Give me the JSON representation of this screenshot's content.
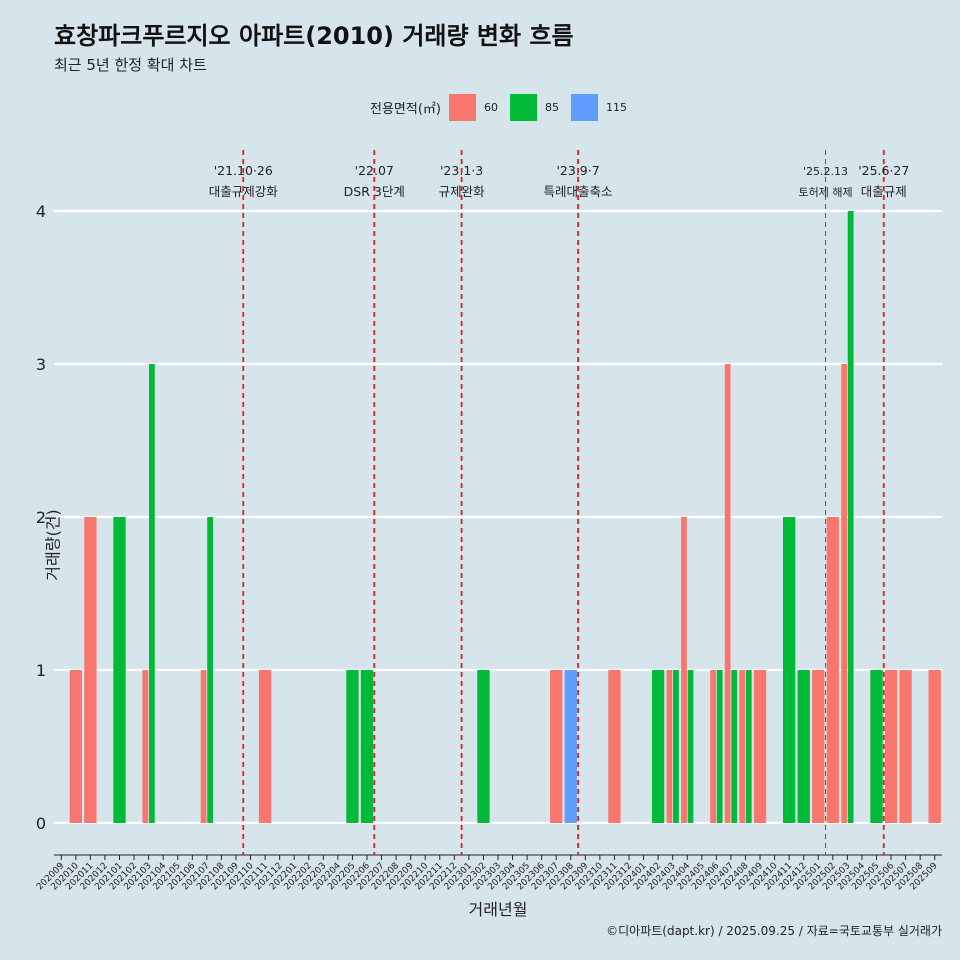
{
  "title": "효창파크푸르지오 아파트(2010) 거래량 변화 흐름",
  "subtitle": "최근 5년 한정 확대 차트",
  "footer": "©디아파트(dapt.kr) / 2025.09.25 / 자료=국토교통부 실거래가",
  "legend": {
    "title": "전용면적(㎡)",
    "items": [
      {
        "label": "60",
        "color": "#f8766d"
      },
      {
        "label": "85",
        "color": "#00ba38"
      },
      {
        "label": "115",
        "color": "#619cff"
      }
    ]
  },
  "chart_data": {
    "type": "bar",
    "xlabel": "거래년월",
    "ylabel": "거래량(건)",
    "ylim": [
      0,
      4
    ],
    "yticks": [
      0,
      1,
      2,
      3,
      4
    ],
    "categories": [
      "202009",
      "202010",
      "202011",
      "202012",
      "202101",
      "202102",
      "202103",
      "202104",
      "202105",
      "202106",
      "202107",
      "202108",
      "202109",
      "202110",
      "202111",
      "202112",
      "202201",
      "202202",
      "202203",
      "202204",
      "202205",
      "202206",
      "202207",
      "202208",
      "202209",
      "202210",
      "202211",
      "202212",
      "202301",
      "202302",
      "202303",
      "202304",
      "202305",
      "202306",
      "202307",
      "202308",
      "202309",
      "202310",
      "202311",
      "202312",
      "202401",
      "202402",
      "202403",
      "202404",
      "202405",
      "202406",
      "202407",
      "202408",
      "202409",
      "202410",
      "202411",
      "202412",
      "202501",
      "202502",
      "202503",
      "202504",
      "202505",
      "202506",
      "202507",
      "202508",
      "202509"
    ],
    "bars": [
      {
        "month": "202010",
        "size": "60",
        "value": 1
      },
      {
        "month": "202011",
        "size": "60",
        "value": 2
      },
      {
        "month": "202101",
        "size": "85",
        "value": 2
      },
      {
        "month": "202103",
        "size": "60",
        "value": 1
      },
      {
        "month": "202103",
        "size": "85",
        "value": 3
      },
      {
        "month": "202107",
        "size": "60",
        "value": 1
      },
      {
        "month": "202107",
        "size": "85",
        "value": 2
      },
      {
        "month": "202111",
        "size": "60",
        "value": 1
      },
      {
        "month": "202205",
        "size": "85",
        "value": 1
      },
      {
        "month": "202206",
        "size": "85",
        "value": 1
      },
      {
        "month": "202302",
        "size": "85",
        "value": 1
      },
      {
        "month": "202307",
        "size": "60",
        "value": 1
      },
      {
        "month": "202308",
        "size": "115",
        "value": 1
      },
      {
        "month": "202311",
        "size": "60",
        "value": 1
      },
      {
        "month": "202402",
        "size": "85",
        "value": 1
      },
      {
        "month": "202403",
        "size": "60",
        "value": 1
      },
      {
        "month": "202403",
        "size": "85",
        "value": 1
      },
      {
        "month": "202404",
        "size": "60",
        "value": 2
      },
      {
        "month": "202404",
        "size": "85",
        "value": 1
      },
      {
        "month": "202406",
        "size": "60",
        "value": 1
      },
      {
        "month": "202406",
        "size": "85",
        "value": 1
      },
      {
        "month": "202407",
        "size": "60",
        "value": 3
      },
      {
        "month": "202407",
        "size": "85",
        "value": 1
      },
      {
        "month": "202408",
        "size": "60",
        "value": 1
      },
      {
        "month": "202408",
        "size": "85",
        "value": 1
      },
      {
        "month": "202409",
        "size": "60",
        "value": 1
      },
      {
        "month": "202411",
        "size": "85",
        "value": 2
      },
      {
        "month": "202412",
        "size": "85",
        "value": 1
      },
      {
        "month": "202501",
        "size": "60",
        "value": 1
      },
      {
        "month": "202502",
        "size": "60",
        "value": 2
      },
      {
        "month": "202503",
        "size": "60",
        "value": 3
      },
      {
        "month": "202503",
        "size": "85",
        "value": 4
      },
      {
        "month": "202505",
        "size": "85",
        "value": 1
      },
      {
        "month": "202506",
        "size": "60",
        "value": 1
      },
      {
        "month": "202507",
        "size": "60",
        "value": 1
      },
      {
        "month": "202509",
        "size": "60",
        "value": 1
      }
    ],
    "events": [
      {
        "month": "202110",
        "date": "'21.10·26",
        "label": "대출규제강화"
      },
      {
        "month": "202207",
        "date": "'22.07",
        "label": "DSR 3단계"
      },
      {
        "month": "202301",
        "date": "'23.1·3",
        "label": "규제완화"
      },
      {
        "month": "202309",
        "date": "'23.9·7",
        "label": "특례대출축소"
      },
      {
        "month": "202502",
        "date": "'25.2.13",
        "label": "토허제 해제",
        "style": "thin"
      },
      {
        "month": "202506",
        "date": "'25.6·27",
        "label": "대출규제"
      }
    ]
  }
}
